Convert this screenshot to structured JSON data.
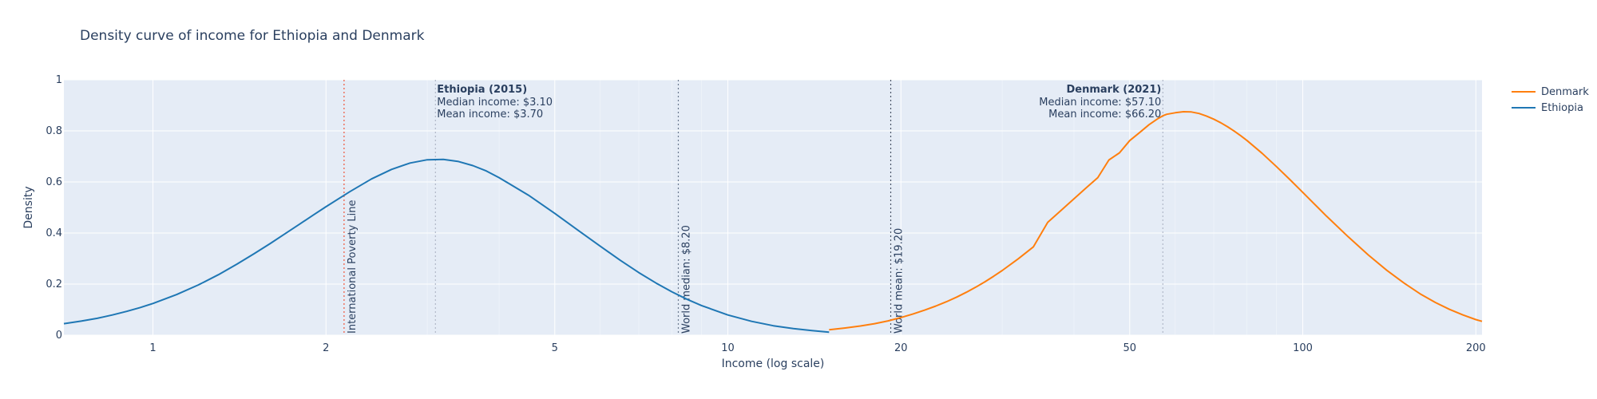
{
  "chart_data": {
    "type": "line",
    "title": "Density curve of income for Ethiopia and Denmark",
    "xlabel": "Income (log scale)",
    "ylabel": "Density",
    "x_scale": "log",
    "xlim": [
      0.7,
      205
    ],
    "ylim": [
      0,
      1
    ],
    "x_ticks": [
      1,
      2,
      5,
      10,
      20,
      50,
      100,
      200
    ],
    "x_tick_labels": [
      "1",
      "2",
      "5",
      "10",
      "20",
      "50",
      "100",
      "200"
    ],
    "y_ticks": [
      0,
      0.2,
      0.4,
      0.6,
      0.8,
      1
    ],
    "y_tick_labels": [
      "0",
      "0.2",
      "0.4",
      "0.6",
      "0.8",
      "1"
    ],
    "grid": true,
    "legend_position": "top-right",
    "plot_bgcolor": "#e5ecf6",
    "series": [
      {
        "name": "Denmark",
        "color": "#ff7f0e",
        "x": [
          15,
          16,
          17,
          18,
          19,
          20,
          21,
          22,
          23,
          24,
          25,
          26,
          27,
          28,
          29,
          30,
          32,
          34,
          36,
          38,
          40,
          42,
          44,
          46,
          48,
          50,
          52,
          54,
          56,
          57.1,
          58,
          60,
          62,
          64,
          66,
          68,
          70,
          72,
          74,
          76,
          78,
          80,
          85,
          90,
          95,
          100,
          110,
          120,
          130,
          140,
          150,
          160,
          170,
          180,
          190,
          200,
          205
        ],
        "y": [
          0.021,
          0.028,
          0.036,
          0.045,
          0.056,
          0.069,
          0.083,
          0.098,
          0.114,
          0.131,
          0.149,
          0.168,
          0.188,
          0.209,
          0.231,
          0.253,
          0.299,
          0.346,
          0.442,
          0.489,
          0.534,
          0.577,
          0.617,
          0.686,
          0.714,
          0.762,
          0.793,
          0.824,
          0.848,
          0.859,
          0.865,
          0.871,
          0.875,
          0.874,
          0.868,
          0.858,
          0.846,
          0.832,
          0.816,
          0.799,
          0.781,
          0.762,
          0.712,
          0.66,
          0.609,
          0.559,
          0.466,
          0.385,
          0.314,
          0.254,
          0.204,
          0.162,
          0.128,
          0.101,
          0.079,
          0.061,
          0.054
        ]
      },
      {
        "name": "Ethiopia",
        "color": "#1f77b4",
        "x": [
          0.7,
          0.75,
          0.8,
          0.85,
          0.9,
          0.95,
          1.0,
          1.1,
          1.2,
          1.3,
          1.4,
          1.5,
          1.6,
          1.7,
          1.8,
          1.9,
          2.0,
          2.2,
          2.4,
          2.6,
          2.8,
          3.0,
          3.2,
          3.4,
          3.6,
          3.8,
          4.0,
          4.5,
          5.0,
          5.5,
          6.0,
          6.5,
          7.0,
          7.5,
          8.0,
          8.5,
          9.0,
          10,
          11,
          12,
          13,
          14,
          15
        ],
        "y": [
          0.045,
          0.055,
          0.066,
          0.079,
          0.093,
          0.108,
          0.124,
          0.159,
          0.197,
          0.237,
          0.278,
          0.319,
          0.359,
          0.398,
          0.435,
          0.47,
          0.503,
          0.562,
          0.612,
          0.649,
          0.674,
          0.687,
          0.688,
          0.68,
          0.664,
          0.643,
          0.617,
          0.548,
          0.477,
          0.409,
          0.348,
          0.293,
          0.245,
          0.204,
          0.169,
          0.14,
          0.116,
          0.079,
          0.054,
          0.037,
          0.026,
          0.018,
          0.012
        ]
      }
    ],
    "vlines": [
      {
        "x": 2.15,
        "color": "#ef553b",
        "dash": "dot",
        "label": "International Poverty Line"
      },
      {
        "x": 3.1,
        "color": "#b0b8c8",
        "dash": "dot",
        "label": ""
      },
      {
        "x": 8.2,
        "color": "#6b7a8f",
        "dash": "dot",
        "label": "World median: $8.20"
      },
      {
        "x": 19.2,
        "color": "#4a5568",
        "dash": "dot",
        "label": "World mean: $19.20"
      },
      {
        "x": 57.1,
        "color": "#b0b8c8",
        "dash": "dot",
        "label": ""
      }
    ],
    "annotations": [
      {
        "x": 3.1,
        "anchor": "left",
        "title": "Ethiopia (2015)",
        "lines": [
          "Median income: $3.10",
          "Mean income: $3.70"
        ]
      },
      {
        "x": 57.1,
        "anchor": "right",
        "title": "Denmark (2021)",
        "lines": [
          "Median income: $57.10",
          "Mean income: $66.20"
        ]
      }
    ]
  }
}
